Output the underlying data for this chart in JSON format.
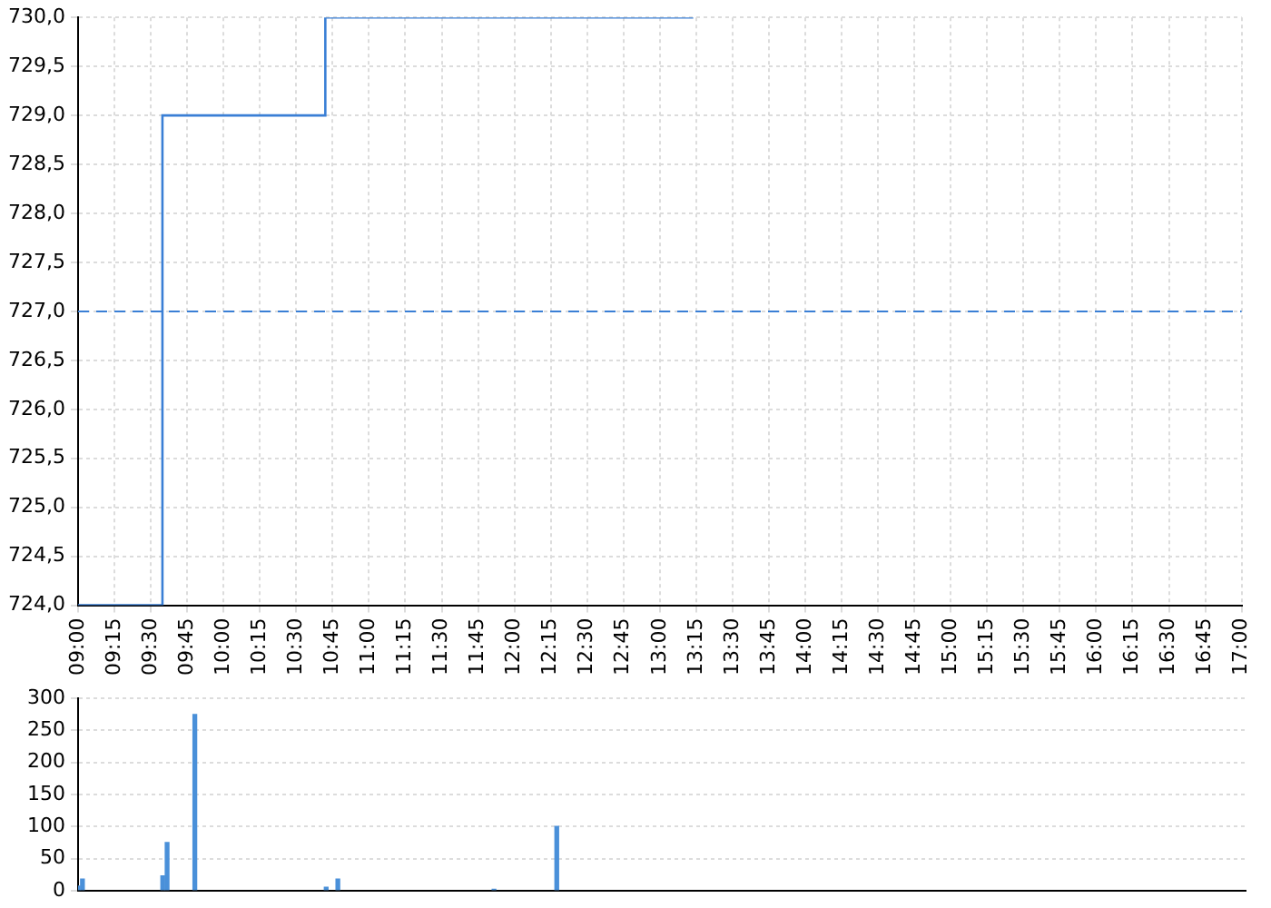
{
  "chart_data": [
    {
      "type": "step",
      "x": [
        9,
        9.58,
        10.7,
        13.23
      ],
      "values": [
        724,
        729,
        730,
        730
      ],
      "color": "#3a7fd5",
      "xlim": [
        9,
        17
      ],
      "xticks": [
        {
          "value": 9,
          "label": "09:00"
        },
        {
          "value": 9.25,
          "label": "09:15"
        },
        {
          "value": 9.5,
          "label": "09:30"
        },
        {
          "value": 9.75,
          "label": "09:45"
        },
        {
          "value": 10,
          "label": "10:00"
        },
        {
          "value": 10.25,
          "label": "10:15"
        },
        {
          "value": 10.5,
          "label": "10:30"
        },
        {
          "value": 10.75,
          "label": "10:45"
        },
        {
          "value": 11,
          "label": "11:00"
        },
        {
          "value": 11.25,
          "label": "11:15"
        },
        {
          "value": 11.5,
          "label": "11:30"
        },
        {
          "value": 11.75,
          "label": "11:45"
        },
        {
          "value": 12,
          "label": "12:00"
        },
        {
          "value": 12.25,
          "label": "12:15"
        },
        {
          "value": 12.5,
          "label": "12:30"
        },
        {
          "value": 12.75,
          "label": "12:45"
        },
        {
          "value": 13,
          "label": "13:00"
        },
        {
          "value": 13.25,
          "label": "13:15"
        },
        {
          "value": 13.5,
          "label": "13:30"
        },
        {
          "value": 13.75,
          "label": "13:45"
        },
        {
          "value": 14,
          "label": "14:00"
        },
        {
          "value": 14.25,
          "label": "14:15"
        },
        {
          "value": 14.5,
          "label": "14:30"
        },
        {
          "value": 14.75,
          "label": "14:45"
        },
        {
          "value": 15,
          "label": "15:00"
        },
        {
          "value": 15.25,
          "label": "15:15"
        },
        {
          "value": 15.5,
          "label": "15:30"
        },
        {
          "value": 15.75,
          "label": "15:45"
        },
        {
          "value": 16,
          "label": "16:00"
        },
        {
          "value": 16.25,
          "label": "16:15"
        },
        {
          "value": 16.5,
          "label": "16:30"
        },
        {
          "value": 16.75,
          "label": "16:45"
        },
        {
          "value": 17,
          "label": "17:00"
        }
      ],
      "ylim": [
        724,
        730
      ],
      "yticks": [
        {
          "value": 724,
          "label": "724,0"
        },
        {
          "value": 724.5,
          "label": "724,5"
        },
        {
          "value": 725,
          "label": "725,0"
        },
        {
          "value": 725.5,
          "label": "725,5"
        },
        {
          "value": 726,
          "label": "726,0"
        },
        {
          "value": 726.5,
          "label": "726,5"
        },
        {
          "value": 727,
          "label": "727,0"
        },
        {
          "value": 727.5,
          "label": "727,5"
        },
        {
          "value": 728,
          "label": "728,0"
        },
        {
          "value": 728.5,
          "label": "728,5"
        },
        {
          "value": 729,
          "label": "729,0"
        },
        {
          "value": 729.5,
          "label": "729,5"
        },
        {
          "value": 730,
          "label": "730,0"
        }
      ],
      "grid": true,
      "ref_lines": [
        {
          "axis": "y",
          "value": 727,
          "color": "#3a7fd5",
          "line_style": "dashed"
        }
      ]
    },
    {
      "type": "bar",
      "x": [
        9.0,
        9.03,
        9.58,
        9.61,
        9.8,
        10.7,
        10.78,
        11.85,
        12.28
      ],
      "values": [
        7,
        18,
        23,
        75,
        275,
        5,
        18,
        2,
        100
      ],
      "color": "#4a90d9",
      "xlim": [
        9,
        17
      ],
      "ylim": [
        0,
        300
      ],
      "yticks": [
        0,
        50,
        100,
        150,
        200,
        250,
        300
      ],
      "grid": true,
      "tick_labels": "y"
    }
  ]
}
